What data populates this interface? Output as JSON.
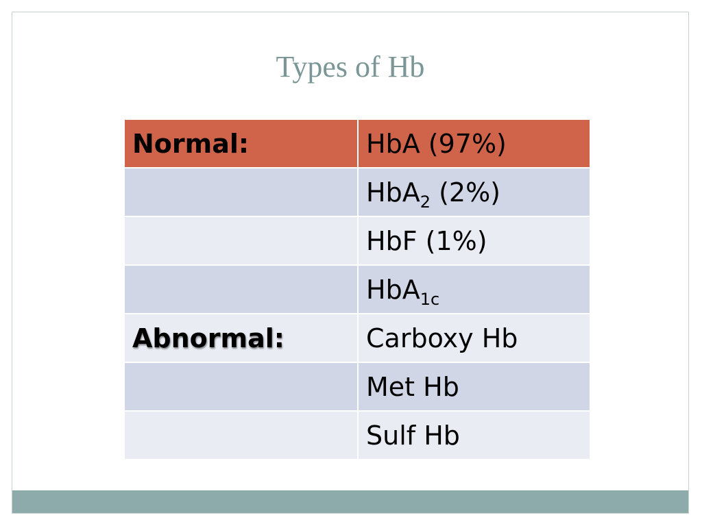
{
  "slide": {
    "title": "Types of Hb",
    "colors": {
      "title": "#7a9696",
      "header_row": "#d0644a",
      "row_dark": "#d0d6e6",
      "row_light": "#e9ecf3",
      "footer_bar": "#8eabab"
    }
  },
  "table": {
    "rows": [
      {
        "category": "Normal:",
        "type": "HbA (97%)"
      },
      {
        "category": "",
        "type_base": "HbA",
        "type_sub": "2",
        "type_suffix": " (2%)"
      },
      {
        "category": "",
        "type": "HbF (1%)"
      },
      {
        "category": "",
        "type_base": "HbA",
        "type_sub": "1c",
        "type_suffix": ""
      },
      {
        "category": "Abnormal:",
        "type": "Carboxy Hb"
      },
      {
        "category": "",
        "type": "Met Hb"
      },
      {
        "category": "",
        "type": "Sulf Hb"
      }
    ]
  }
}
